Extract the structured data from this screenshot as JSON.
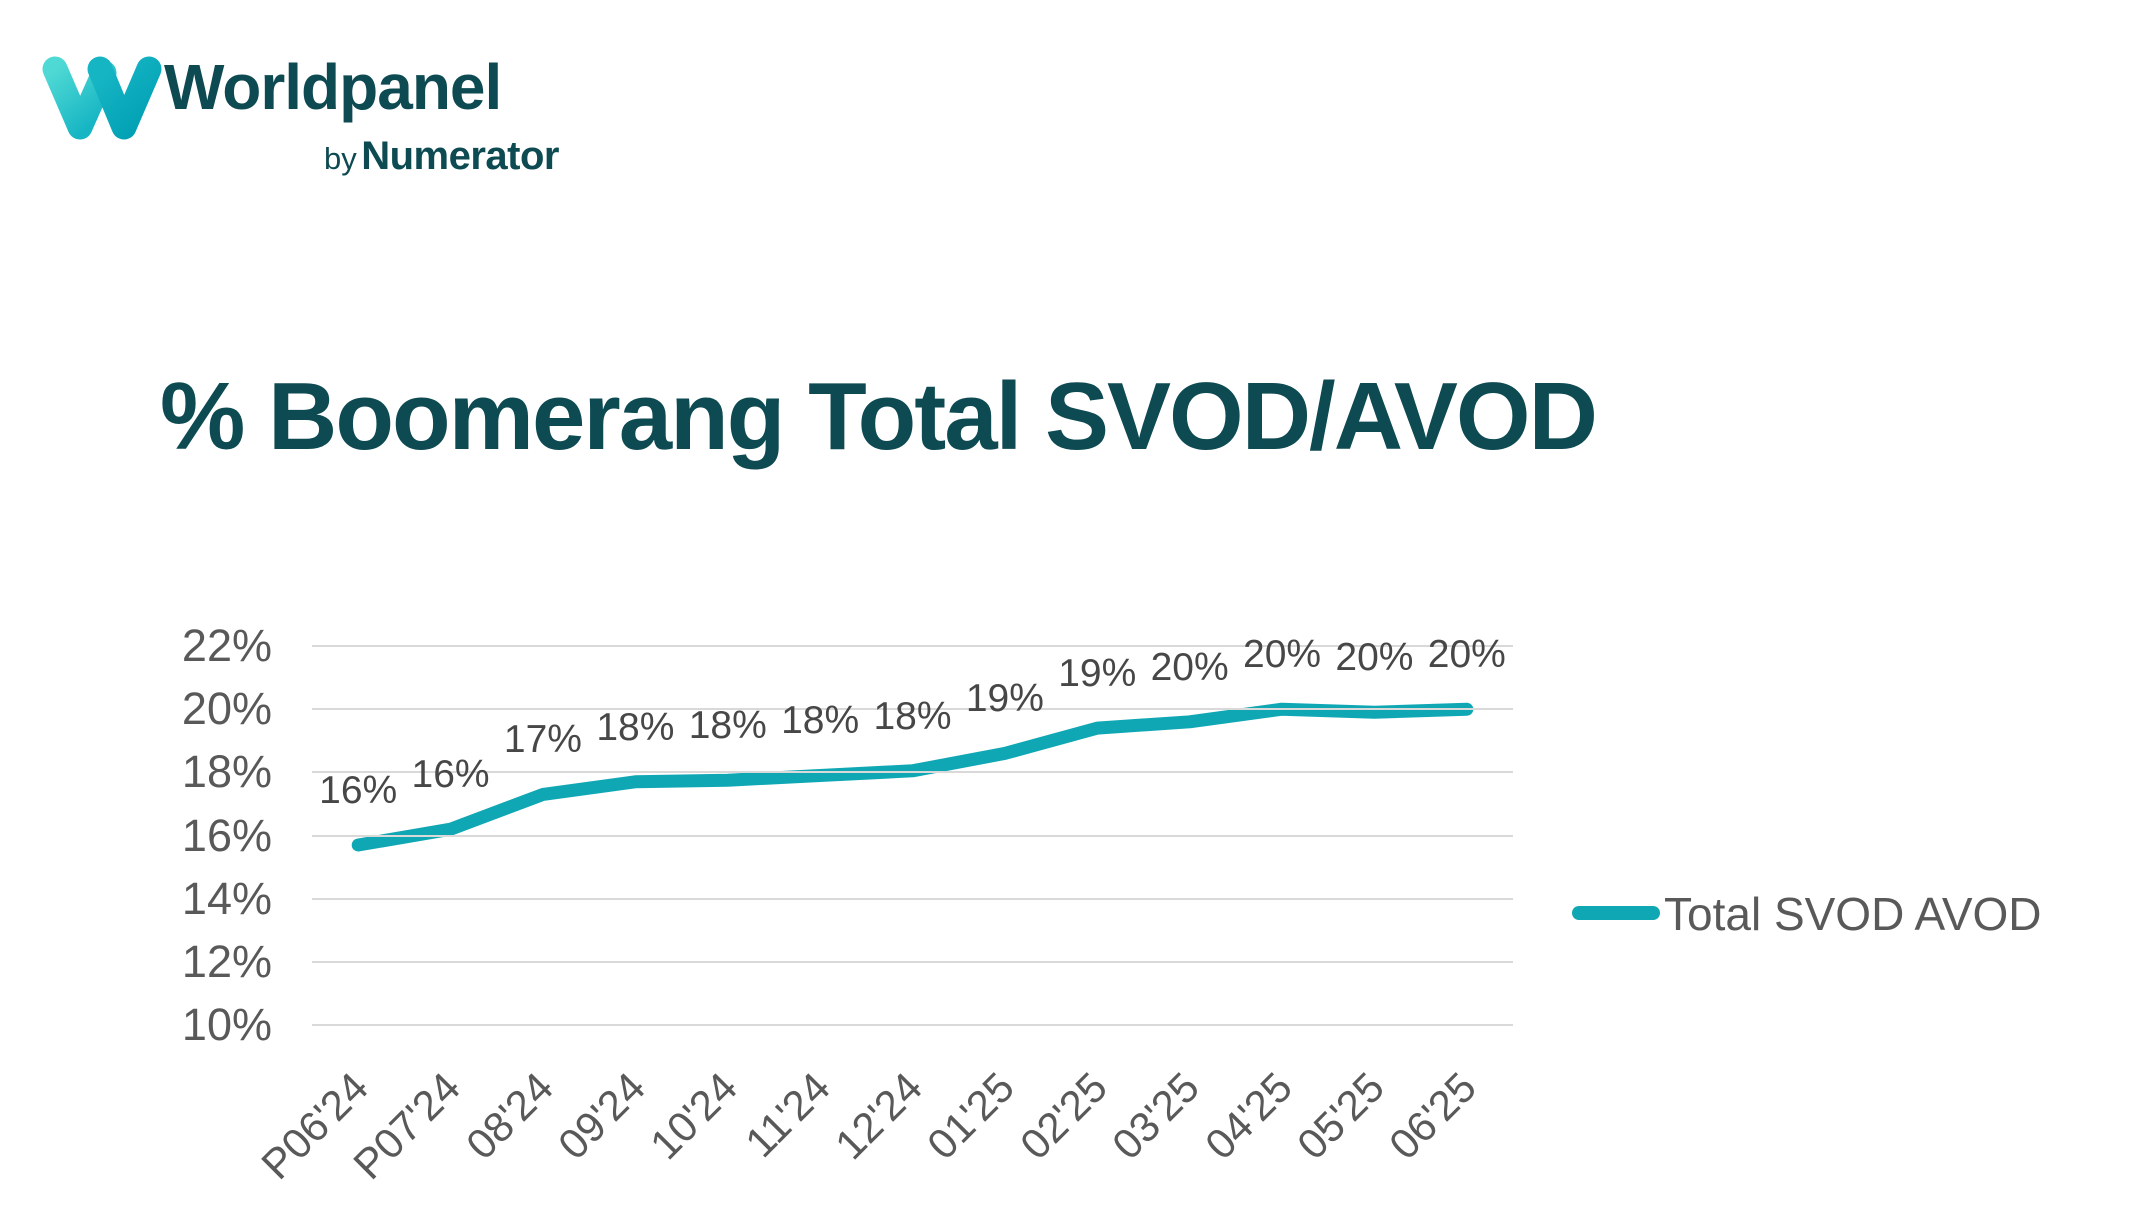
{
  "logo": {
    "brand": "Worldpanel",
    "byline_prefix": "by",
    "byline_brand": "Numerator"
  },
  "title": "% Boomerang Total SVOD/AVOD",
  "legend": {
    "label": "Total SVOD AVOD"
  },
  "colors": {
    "brand_dark_teal": "#0d4a52",
    "line_teal": "#10a7b5",
    "axis_gray": "#595959",
    "gridline_gray": "#d9d9d9",
    "data_label_gray": "#474747",
    "logo_gradient_light": "#4fd9d4",
    "logo_gradient_mid": "#16b5c4",
    "logo_gradient_dark": "#009fb3"
  },
  "chart_data": {
    "type": "line",
    "title": "% Boomerang Total SVOD/AVOD",
    "categories": [
      "P06'24",
      "P07'24",
      "08'24",
      "09'24",
      "10'24",
      "11'24",
      "12'24",
      "01'25",
      "02'25",
      "03'25",
      "04'25",
      "05'25",
      "06'25"
    ],
    "series": [
      {
        "name": "Total SVOD AVOD",
        "values": [
          15.7,
          16.2,
          17.3,
          17.7,
          17.75,
          17.9,
          18.05,
          18.6,
          19.4,
          19.6,
          20.0,
          19.9,
          20.0
        ],
        "point_labels": [
          "16%",
          "16%",
          "17%",
          "18%",
          "18%",
          "18%",
          "18%",
          "19%",
          "19%",
          "20%",
          "20%",
          "20%",
          "20%"
        ]
      }
    ],
    "xlabel": "",
    "ylabel": "",
    "ylim": [
      10,
      22
    ],
    "y_ticks": [
      {
        "label": "22%",
        "value": 22
      },
      {
        "label": "20%",
        "value": 20
      },
      {
        "label": "18%",
        "value": 18
      },
      {
        "label": "16%",
        "value": 16
      },
      {
        "label": "14%",
        "value": 14
      },
      {
        "label": "12%",
        "value": 12
      },
      {
        "label": "10%",
        "value": 10
      }
    ],
    "grid": true,
    "legend_position": "right"
  }
}
